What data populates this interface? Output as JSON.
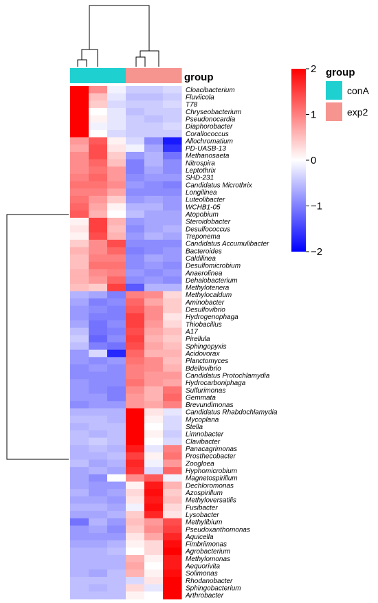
{
  "chart_data": {
    "type": "heatmap",
    "annotation_label": "group",
    "legend_title": "group",
    "columns": [
      {
        "group": "conA"
      },
      {
        "group": "conA"
      },
      {
        "group": "conA"
      },
      {
        "group": "exp2"
      },
      {
        "group": "exp2"
      },
      {
        "group": "exp2"
      }
    ],
    "groups": [
      {
        "name": "conA",
        "color": "#1fd0d0"
      },
      {
        "name": "exp2",
        "color": "#f69490"
      }
    ],
    "color_scale": {
      "min": -2,
      "max": 2,
      "low_color": "#0000ff",
      "mid_color": "#ffffff",
      "high_color": "#ff0000",
      "ticks": [
        "2",
        "1",
        "0",
        "−1",
        "−2"
      ],
      "tick_values": [
        2,
        1,
        0,
        -1,
        -2
      ]
    },
    "rows": [
      {
        "name": "Cloacibacterium",
        "values": [
          2.1,
          0.9,
          -0.1,
          -0.4,
          -0.4,
          -0.3
        ]
      },
      {
        "name": "Fluviicola",
        "values": [
          2.1,
          0.5,
          -0.2,
          -0.5,
          -0.5,
          -0.4
        ]
      },
      {
        "name": "T78",
        "values": [
          2.0,
          0.4,
          -0.3,
          -0.4,
          -0.4,
          -0.3
        ]
      },
      {
        "name": "Chryseobacterium",
        "values": [
          2.1,
          0.0,
          -0.2,
          -0.5,
          -0.4,
          -0.4
        ]
      },
      {
        "name": "Pseudonocardia",
        "values": [
          2.0,
          0.1,
          -0.2,
          -0.4,
          -0.5,
          -0.4
        ]
      },
      {
        "name": "Diaphorobacter",
        "values": [
          2.0,
          -0.1,
          -0.2,
          -0.4,
          -0.4,
          -0.3
        ]
      },
      {
        "name": "Corallococcus",
        "values": [
          2.0,
          0.0,
          -0.3,
          -0.4,
          -0.4,
          -0.4
        ]
      },
      {
        "name": "Allochromatium",
        "values": [
          0.8,
          1.3,
          0.1,
          -0.3,
          -0.9,
          -1.8
        ]
      },
      {
        "name": "PD-UASB-13",
        "values": [
          0.7,
          1.4,
          0.2,
          -0.1,
          -0.7,
          -1.6
        ]
      },
      {
        "name": "Methanosaeta",
        "values": [
          0.9,
          1.4,
          0.4,
          -0.8,
          -0.6,
          -1.1
        ]
      },
      {
        "name": "Nitrospira",
        "values": [
          0.9,
          1.2,
          0.5,
          -1.0,
          -0.6,
          -0.9
        ]
      },
      {
        "name": "Leptothrix",
        "values": [
          0.9,
          1.1,
          0.8,
          -1.0,
          -0.7,
          -0.9
        ]
      },
      {
        "name": "SHD-231",
        "values": [
          1.0,
          1.2,
          0.8,
          -0.9,
          -0.8,
          -0.8
        ]
      },
      {
        "name": "Candidatus Microthrix",
        "values": [
          1.1,
          1.1,
          0.9,
          -0.8,
          -0.9,
          -1.0
        ]
      },
      {
        "name": "Longilinea",
        "values": [
          1.0,
          1.0,
          0.7,
          -0.9,
          -0.9,
          -0.9
        ]
      },
      {
        "name": "Luteolibacter",
        "values": [
          1.1,
          0.8,
          0.4,
          -0.8,
          -0.7,
          -0.8
        ]
      },
      {
        "name": "WCHB1-05",
        "values": [
          1.2,
          0.7,
          0.1,
          -0.6,
          -0.6,
          -0.8
        ]
      },
      {
        "name": "Atopobium",
        "values": [
          1.3,
          0.6,
          0.0,
          -0.5,
          -0.7,
          -0.7
        ]
      },
      {
        "name": "Steroidobacter",
        "values": [
          0.1,
          1.5,
          0.6,
          -0.8,
          -0.7,
          -0.7
        ]
      },
      {
        "name": "Desulfococcus",
        "values": [
          0.2,
          1.5,
          0.5,
          -0.9,
          -0.7,
          -0.6
        ]
      },
      {
        "name": "Treponema",
        "values": [
          0.1,
          1.4,
          0.6,
          -0.8,
          -0.6,
          -0.7
        ]
      },
      {
        "name": "Candidatus Accumulibacter",
        "values": [
          0.4,
          0.9,
          1.4,
          -0.9,
          -0.9,
          -0.9
        ]
      },
      {
        "name": "Bacteroides",
        "values": [
          0.6,
          0.9,
          1.2,
          -1.0,
          -0.9,
          -0.8
        ]
      },
      {
        "name": "Caldilinea",
        "values": [
          0.5,
          1.0,
          1.0,
          -0.9,
          -0.7,
          -0.8
        ]
      },
      {
        "name": "Desulfomicrobium",
        "values": [
          0.5,
          1.1,
          1.1,
          -0.9,
          -0.8,
          -0.9
        ]
      },
      {
        "name": "Anaerolinea",
        "values": [
          0.6,
          0.9,
          1.0,
          -0.8,
          -0.9,
          -0.8
        ]
      },
      {
        "name": "Dehalobacterium",
        "values": [
          0.6,
          0.8,
          1.2,
          -0.9,
          -0.8,
          -0.9
        ]
      },
      {
        "name": "Methylotenera",
        "values": [
          0.5,
          0.4,
          1.5,
          -1.3,
          -0.6,
          -0.6
        ]
      },
      {
        "name": "Methylocaldum",
        "values": [
          -0.6,
          -0.7,
          -1.0,
          1.0,
          0.9,
          0.3
        ]
      },
      {
        "name": "Aminobacter",
        "values": [
          -0.7,
          -1.0,
          -0.9,
          1.2,
          0.7,
          0.4
        ]
      },
      {
        "name": "Desulfovibrio",
        "values": [
          -0.8,
          -0.9,
          -1.0,
          1.3,
          0.9,
          0.4
        ]
      },
      {
        "name": "Hydrogenophaga",
        "values": [
          -0.8,
          -1.0,
          -1.0,
          1.5,
          0.9,
          0.2
        ]
      },
      {
        "name": "Thiobacillus",
        "values": [
          -0.7,
          -1.1,
          -0.9,
          1.5,
          0.8,
          0.3
        ]
      },
      {
        "name": "A17",
        "values": [
          -0.5,
          -1.1,
          -1.0,
          1.4,
          0.7,
          0.5
        ]
      },
      {
        "name": "Pirellula",
        "values": [
          -0.4,
          -1.2,
          -0.9,
          1.5,
          0.6,
          0.4
        ]
      },
      {
        "name": "Sphingopyxis",
        "values": [
          -0.5,
          -1.0,
          -1.1,
          1.4,
          0.7,
          0.5
        ]
      },
      {
        "name": "Acidovorax",
        "values": [
          -0.8,
          -0.3,
          -1.7,
          1.2,
          0.6,
          0.6
        ]
      },
      {
        "name": "Planctomyces",
        "values": [
          -0.8,
          -0.9,
          -0.8,
          1.1,
          0.9,
          0.5
        ]
      },
      {
        "name": "Bdellovibrio",
        "values": [
          -0.9,
          -0.8,
          -0.9,
          1.0,
          0.9,
          0.6
        ]
      },
      {
        "name": "Candidatus Protochlamydia",
        "values": [
          -0.9,
          -0.9,
          -0.9,
          1.0,
          0.8,
          0.8
        ]
      },
      {
        "name": "Hydrocarboniphaga",
        "values": [
          -0.8,
          -0.9,
          -0.9,
          1.1,
          0.8,
          0.7
        ]
      },
      {
        "name": "Sulfurimonas",
        "values": [
          -0.8,
          -0.9,
          -1.0,
          0.9,
          0.6,
          1.1
        ]
      },
      {
        "name": "Gemmata",
        "values": [
          -0.8,
          -0.8,
          -1.0,
          0.8,
          0.6,
          1.2
        ]
      },
      {
        "name": "Brevundimonas",
        "values": [
          -0.9,
          -0.8,
          -0.8,
          0.8,
          0.7,
          1.0
        ]
      },
      {
        "name": "Candidatus Rhabdochlamydia",
        "values": [
          -0.6,
          -0.6,
          -0.6,
          2.0,
          0.2,
          -0.2
        ]
      },
      {
        "name": "Mycoplana",
        "values": [
          -0.5,
          -0.5,
          -0.6,
          2.0,
          0.1,
          -0.3
        ]
      },
      {
        "name": "Stella",
        "values": [
          -0.6,
          -0.5,
          -0.5,
          2.0,
          0.0,
          -0.3
        ]
      },
      {
        "name": "Limnobacter",
        "values": [
          -0.5,
          -0.6,
          -0.5,
          2.0,
          0.1,
          -0.4
        ]
      },
      {
        "name": "Clavibacter",
        "values": [
          -0.5,
          -0.4,
          -0.5,
          2.0,
          0.0,
          -0.3
        ]
      },
      {
        "name": "Panacagrimonas",
        "values": [
          -0.6,
          -0.5,
          -0.6,
          1.8,
          -0.2,
          1.0
        ]
      },
      {
        "name": "Prosthecobacter",
        "values": [
          -0.6,
          -0.6,
          -0.5,
          1.5,
          0.1,
          1.1
        ]
      },
      {
        "name": "Zoogloea",
        "values": [
          -0.5,
          -0.7,
          -0.6,
          1.7,
          -0.1,
          0.8
        ]
      },
      {
        "name": "Hyphomicrobium",
        "values": [
          -0.7,
          -0.6,
          -0.7,
          1.6,
          -0.3,
          1.2
        ]
      },
      {
        "name": "Magnetospirillum",
        "values": [
          -0.7,
          -0.9,
          0.0,
          0.9,
          1.3,
          -0.1
        ]
      },
      {
        "name": "Dechloromonas",
        "values": [
          -0.7,
          -0.8,
          -0.8,
          0.1,
          1.8,
          0.6
        ]
      },
      {
        "name": "Azospirillum",
        "values": [
          -0.6,
          -0.8,
          -0.7,
          0.3,
          1.9,
          0.4
        ]
      },
      {
        "name": "Methyloversatilis",
        "values": [
          -0.7,
          -0.7,
          -0.8,
          0.2,
          1.8,
          0.5
        ]
      },
      {
        "name": "Fusibacter",
        "values": [
          -0.6,
          -0.6,
          -0.7,
          -0.1,
          1.9,
          0.3
        ]
      },
      {
        "name": "Lysobacter",
        "values": [
          -0.7,
          -0.7,
          -0.6,
          0.4,
          1.7,
          0.2
        ]
      },
      {
        "name": "Methylibium",
        "values": [
          -1.1,
          -0.6,
          -0.8,
          0.5,
          0.8,
          1.4
        ]
      },
      {
        "name": "Pseudoxanthomonas",
        "values": [
          -0.8,
          -0.7,
          -0.9,
          0.4,
          0.9,
          1.5
        ]
      },
      {
        "name": "Aquicella",
        "values": [
          -0.8,
          -0.8,
          -0.8,
          0.2,
          0.7,
          1.7
        ]
      },
      {
        "name": "Fimbriimonas",
        "values": [
          -0.7,
          -0.7,
          -0.6,
          0.1,
          0.3,
          1.9
        ]
      },
      {
        "name": "Agrobacterium",
        "values": [
          -0.6,
          -0.6,
          -0.5,
          0.0,
          0.3,
          2.0
        ]
      },
      {
        "name": "Methylomonas",
        "values": [
          -0.6,
          -0.6,
          -0.6,
          0.6,
          0.1,
          1.8
        ]
      },
      {
        "name": "Aequorivita",
        "values": [
          -0.6,
          -0.6,
          -0.6,
          0.7,
          0.0,
          1.8
        ]
      },
      {
        "name": "Solimonas",
        "values": [
          -0.6,
          -0.7,
          -0.5,
          0.6,
          0.1,
          1.9
        ]
      },
      {
        "name": "Rhodanobacter",
        "values": [
          -0.5,
          -0.5,
          -0.5,
          -0.3,
          0.2,
          2.1
        ]
      },
      {
        "name": "Sphingobacterium",
        "values": [
          -0.5,
          -0.6,
          -0.5,
          0.3,
          -0.2,
          2.1
        ]
      },
      {
        "name": "Arthrobacter",
        "values": [
          -0.5,
          -0.5,
          -0.5,
          0.1,
          0.0,
          2.1
        ]
      }
    ]
  }
}
